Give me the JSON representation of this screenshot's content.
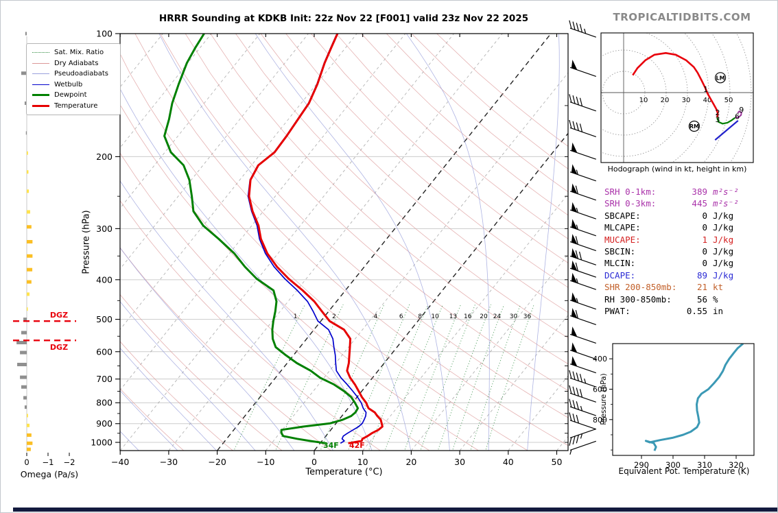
{
  "header": {
    "title": "HRRR Sounding at KDKB Init: 22z Nov 22 [F001] valid 23z Nov 22 2025",
    "watermark": "TROPICALTIDBITS.COM"
  },
  "legend": {
    "items": [
      {
        "label": "Sat. Mix. Ratio",
        "style": "mixratio"
      },
      {
        "label": "Dry Adiabats",
        "style": "dry"
      },
      {
        "label": "Pseudoadiabats",
        "style": "pseudo"
      },
      {
        "label": "Wetbulb",
        "style": "wetbulb"
      },
      {
        "label": "Dewpoint",
        "style": "dewpoint"
      },
      {
        "label": "Temperature",
        "style": "temperature"
      }
    ]
  },
  "skewt": {
    "xlabel": "Temperature (°C)",
    "ylabel": "Pressure (hPa)",
    "x_ticks": [
      -40,
      -30,
      -20,
      -10,
      0,
      10,
      20,
      30,
      40,
      50
    ],
    "p_ticks": [
      100,
      200,
      300,
      400,
      500,
      600,
      700,
      800,
      900,
      1000
    ],
    "mix_ratio_lines": [
      1,
      2,
      4,
      6,
      8,
      10,
      13,
      16,
      20,
      24,
      30,
      36
    ],
    "surface_temp_label": "42F",
    "surface_dewpoint_label": "34F",
    "colors": {
      "temperature": "#e60000",
      "dewpoint": "#008000",
      "wetbulb": "#0000cc",
      "dry_adiabat": "#dc9898",
      "pseudoadiabat": "#9aa0dc",
      "mix_ratio": "#2e8b3e",
      "isotherm": "#999999",
      "isotherm_bold": "#222222",
      "grid": "#cccccc"
    }
  },
  "omega": {
    "xlabel": "Omega (Pa/s)",
    "x_ticks": [
      0,
      -1,
      -2
    ],
    "dgz_label": "DGZ",
    "dgz_levels": [
      {
        "pressure": 505,
        "label_above": true
      },
      {
        "pressure": 563,
        "label_above": false
      }
    ],
    "colors": {
      "descent_bar": "#8f8f8f",
      "ascent_bar": "#fbbf24",
      "ascent_bar_weak": "#ffe34d",
      "dgz": "#e8000b"
    }
  },
  "hodograph": {
    "caption": "Hodograph (wind in kt, height in km)",
    "ring_step_kt": 10,
    "ring_labels": [
      10,
      20,
      30,
      40,
      50
    ],
    "height_labels": [
      {
        "text": "1",
        "u": 38.6,
        "v": 1.6
      },
      {
        "text": "2",
        "u": 44.2,
        "v": -9.4
      },
      {
        "text": "3",
        "u": 44.2,
        "v": -12.6
      },
      {
        "text": "6",
        "u": 53.4,
        "v": -11.2
      },
      {
        "text": "9",
        "u": 55.4,
        "v": -8.0
      }
    ],
    "storm_markers": [
      {
        "text": "LM",
        "u": 45.5,
        "v": 7.0
      },
      {
        "text": "RM",
        "u": 33.2,
        "v": -15.8
      }
    ],
    "colors": {
      "seg_low": "#e8000b",
      "seg_mid": "#008000",
      "seg_high": "#993399",
      "storm_line": "#2222cc"
    }
  },
  "indices": {
    "rows": [
      {
        "label": "SRH 0-1km:",
        "value": "389",
        "unit": "m²s⁻²",
        "color": "#aa33aa",
        "italic_unit": true
      },
      {
        "label": "SRH 0-3km:",
        "value": "445",
        "unit": "m²s⁻²",
        "color": "#aa33aa",
        "italic_unit": true
      },
      {
        "label": "SBCAPE:",
        "value": "0",
        "unit": "J/kg",
        "color": "#000000",
        "italic_unit": false
      },
      {
        "label": "MLCAPE:",
        "value": "0",
        "unit": "J/kg",
        "color": "#000000",
        "italic_unit": false
      },
      {
        "label": "MUCAPE:",
        "value": "1",
        "unit": "J/kg",
        "color": "#d42020",
        "italic_unit": false
      },
      {
        "label": "SBCIN:",
        "value": "0",
        "unit": "J/kg",
        "color": "#000000",
        "italic_unit": false
      },
      {
        "label": "MLCIN:",
        "value": "0",
        "unit": "J/kg",
        "color": "#000000",
        "italic_unit": false
      },
      {
        "label": "DCAPE:",
        "value": "89",
        "unit": "J/kg",
        "color": "#2a2ad4",
        "italic_unit": false
      },
      {
        "label": "SHR 200-850mb:",
        "value": "21",
        "unit": "kt",
        "color": "#c2602a",
        "italic_unit": false
      },
      {
        "label": "RH 300-850mb:",
        "value": "56",
        "unit": "%",
        "color": "#000000",
        "italic_unit": false
      },
      {
        "label": "PWAT:",
        "value": "0.55",
        "unit": "in",
        "color": "#000000",
        "italic_unit": false
      }
    ]
  },
  "theta_e": {
    "xlabel": "Equivalent Pot. Temperature (K)",
    "ylabel": "Pressure (hPa)",
    "x_ticks": [
      290,
      300,
      310,
      320
    ],
    "p_ticks_labeled": [
      400,
      600,
      800
    ],
    "p_ticks_minor": [
      500,
      700,
      900,
      1000
    ],
    "curve_color": "#3b99b5"
  },
  "chart_data": [
    {
      "type": "line",
      "name": "skewt_sounding",
      "title": "HRRR Sounding at KDKB",
      "xlabel": "Temperature (°C)",
      "ylabel": "Pressure (hPa)",
      "xlim": [
        -40,
        50
      ],
      "pressure_range": [
        100,
        1050
      ],
      "pressure_hpa": [
        1005,
        992,
        980,
        965,
        950,
        932,
        915,
        898,
        880,
        862,
        845,
        825,
        800,
        775,
        750,
        722,
        695,
        668,
        640,
        612,
        585,
        558,
        530,
        505,
        478,
        452,
        425,
        398,
        372,
        345,
        318,
        295,
        272,
        250,
        228,
        210,
        195,
        178,
        162,
        148,
        133,
        118,
        108,
        100
      ],
      "series": [
        {
          "name": "Temperature_C",
          "values": [
            5.8,
            8.2,
            8.0,
            8.6,
            9.0,
            9.8,
            10.1,
            9.4,
            8.6,
            7.3,
            6.2,
            4.2,
            2.8,
            1.0,
            -0.6,
            -2.5,
            -4.6,
            -6.4,
            -7.3,
            -8.5,
            -9.7,
            -11.0,
            -13.8,
            -18.2,
            -21.4,
            -24.6,
            -28.8,
            -33.6,
            -38.0,
            -42.2,
            -45.9,
            -48.6,
            -52.2,
            -55.4,
            -57.8,
            -58.6,
            -57.4,
            -57.6,
            -58.0,
            -58.4,
            -59.8,
            -61.8,
            -63.0,
            -64.0
          ]
        },
        {
          "name": "Dewpoint_C",
          "values": [
            1.2,
            -2.5,
            -5.5,
            -8.8,
            -9.6,
            -10.2,
            -6.2,
            -1.2,
            0.8,
            1.9,
            2.2,
            2.0,
            0.5,
            -1.2,
            -3.6,
            -6.8,
            -10.8,
            -13.9,
            -18.0,
            -21.6,
            -25.0,
            -27.0,
            -28.6,
            -29.8,
            -31.0,
            -32.4,
            -34.8,
            -40.2,
            -44.6,
            -49.0,
            -54.6,
            -60.0,
            -64.4,
            -67.2,
            -70.4,
            -74.0,
            -78.8,
            -82.8,
            -84.6,
            -86.6,
            -88.4,
            -90.2,
            -91.0,
            -91.5
          ]
        },
        {
          "name": "Wetbulb_C",
          "values": [
            4.2,
            4.6,
            3.8,
            3.6,
            4.0,
            4.6,
            5.2,
            5.4,
            5.2,
            4.9,
            4.4,
            3.1,
            1.8,
            0.1,
            -1.8,
            -4.1,
            -6.5,
            -8.6,
            -10.0,
            -11.4,
            -13.0,
            -14.6,
            -17.0,
            -20.6,
            -23.2,
            -26.0,
            -29.9,
            -34.4,
            -38.6,
            -42.6,
            -46.2,
            -48.9,
            -52.4,
            -55.6,
            -57.9,
            -58.7,
            -57.5,
            -57.7,
            -58.1,
            -58.5,
            -59.9,
            -61.9,
            -63.1,
            -64.1
          ]
        }
      ]
    },
    {
      "type": "line",
      "name": "hodograph_trace",
      "units": "kt",
      "segments": [
        {
          "name": "low_level",
          "uv": [
            [
              4.3,
              8.2
            ],
            [
              6.5,
              11.5
            ],
            [
              10.2,
              15.2
            ],
            [
              14.5,
              17.8
            ],
            [
              19.8,
              18.6
            ],
            [
              24.5,
              17.8
            ],
            [
              29.4,
              15.2
            ],
            [
              33.0,
              12.0
            ],
            [
              34.8,
              9.3
            ],
            [
              36.6,
              5.8
            ],
            [
              38.2,
              2.6
            ],
            [
              39.5,
              -0.5
            ],
            [
              41.0,
              -3.2
            ],
            [
              42.4,
              -5.6
            ],
            [
              43.6,
              -7.8
            ],
            [
              44.3,
              -9.8
            ],
            [
              44.0,
              -11.8
            ]
          ]
        },
        {
          "name": "mid_level",
          "uv": [
            [
              44.0,
              -11.8
            ],
            [
              44.6,
              -13.8
            ],
            [
              46.5,
              -14.6
            ],
            [
              48.8,
              -14.2
            ],
            [
              50.8,
              -13.0
            ],
            [
              52.4,
              -11.8
            ]
          ]
        },
        {
          "name": "high_level",
          "uv": [
            [
              52.4,
              -11.8
            ],
            [
              54.0,
              -11.6
            ],
            [
              55.2,
              -10.6
            ],
            [
              55.4,
              -9.4
            ],
            [
              54.4,
              -8.8
            ],
            [
              53.6,
              -9.6
            ]
          ]
        },
        {
          "name": "storm_motion_line",
          "uv": [
            [
              43.0,
              -22.3
            ],
            [
              53.8,
              -13.2
            ]
          ]
        }
      ]
    },
    {
      "type": "line",
      "name": "theta_e_profile",
      "xlabel": "Equivalent Pot. Temperature (K)",
      "ylabel": "Pressure (hPa)",
      "xlim": [
        284,
        324
      ],
      "pressure_range": [
        300,
        1040
      ],
      "pressure_hpa": [
        300,
        330,
        360,
        400,
        440,
        480,
        520,
        560,
        600,
        630,
        660,
        700,
        740,
        780,
        820,
        850,
        880,
        900,
        920,
        935,
        950,
        940,
        955,
        980,
        1005
      ],
      "values": [
        322.2,
        320.5,
        319.3,
        317.8,
        316.6,
        315.8,
        314.6,
        313.0,
        311.2,
        309.0,
        307.9,
        307.5,
        307.6,
        308.0,
        308.3,
        307.6,
        305.6,
        303.2,
        299.8,
        295.9,
        292.6,
        291.4,
        293.9,
        294.6,
        294.1
      ]
    },
    {
      "type": "bar",
      "name": "omega_profile",
      "xlabel": "Omega (Pa/s)",
      "xlim": [
        0.6,
        -2.2
      ],
      "pressure_hpa": [
        100,
        125,
        148,
        175,
        196,
        218,
        243,
        273,
        297,
        323,
        350,
        378,
        405,
        434,
        472,
        500,
        539,
        570,
        603,
        645,
        693,
        732,
        778,
        820,
        860,
        909,
        960,
        1005,
        1040
      ],
      "values": [
        0.07,
        0.26,
        0.1,
        0.04,
        -0.06,
        -0.08,
        -0.1,
        -0.16,
        -0.22,
        -0.27,
        -0.27,
        -0.26,
        -0.22,
        -0.13,
        -0.05,
        0.16,
        0.26,
        0.48,
        0.32,
        0.45,
        0.32,
        0.26,
        0.16,
        0.1,
        -0.06,
        -0.13,
        -0.22,
        -0.27,
        -0.19
      ]
    },
    {
      "type": "wind_barbs",
      "name": "wind_profile",
      "units": "kt",
      "barbs": [
        [
          97,
          45,
          0
        ],
        [
          121,
          50,
          0
        ],
        [
          147,
          40,
          0
        ],
        [
          170,
          40,
          0
        ],
        [
          193,
          50,
          0
        ],
        [
          218,
          55,
          0
        ],
        [
          243,
          60,
          0
        ],
        [
          270,
          55,
          0
        ],
        [
          297,
          55,
          0
        ],
        [
          323,
          60,
          0
        ],
        [
          350,
          70,
          0
        ],
        [
          375,
          60,
          0
        ],
        [
          402,
          55,
          0
        ],
        [
          449,
          55,
          0
        ],
        [
          490,
          60,
          0
        ],
        [
          544,
          50,
          0
        ],
        [
          595,
          50,
          0
        ],
        [
          643,
          50,
          0
        ],
        [
          696,
          45,
          0
        ],
        [
          758,
          40,
          0
        ],
        [
          818,
          35,
          0
        ],
        [
          883,
          30,
          0
        ],
        [
          975,
          35,
          1
        ],
        [
          1045,
          5,
          1
        ]
      ]
    }
  ]
}
